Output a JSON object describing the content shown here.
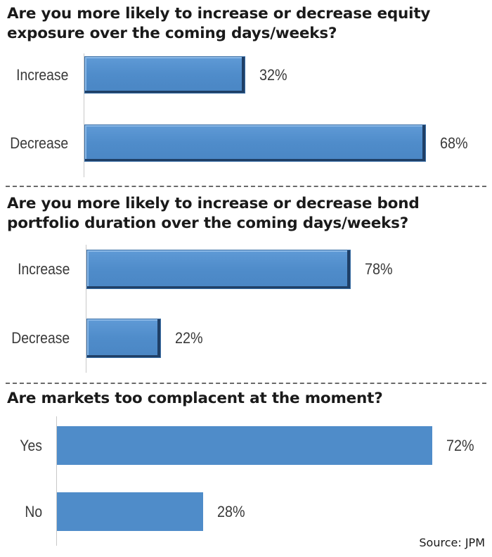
{
  "chart_data": [
    {
      "type": "bar",
      "orientation": "horizontal",
      "title": "Are you more likely to increase or decrease equity exposure over the coming days/weeks?",
      "categories": [
        "Increase",
        "Decrease"
      ],
      "values": [
        32,
        68
      ],
      "value_labels": [
        "32%",
        "68%"
      ],
      "unit": "%",
      "xlim": [
        0,
        100
      ],
      "grid": false,
      "bar_color": "#4f8cc9"
    },
    {
      "type": "bar",
      "orientation": "horizontal",
      "title": "Are you more likely to increase or decrease bond portfolio duration over the coming days/weeks?",
      "categories": [
        "Increase",
        "Decrease"
      ],
      "values": [
        78,
        22
      ],
      "value_labels": [
        "78%",
        "22%"
      ],
      "unit": "%",
      "xlim": [
        0,
        100
      ],
      "grid": false,
      "bar_color": "#4f8cc9"
    },
    {
      "type": "bar",
      "orientation": "horizontal",
      "title": "Are markets too complacent at the moment?",
      "categories": [
        "Yes",
        "No"
      ],
      "values": [
        72,
        28
      ],
      "value_labels": [
        "72%",
        "28%"
      ],
      "unit": "%",
      "xlim": [
        0,
        100
      ],
      "grid": false,
      "bar_color": "#4f8cc9"
    }
  ],
  "source": "Source: JPM"
}
